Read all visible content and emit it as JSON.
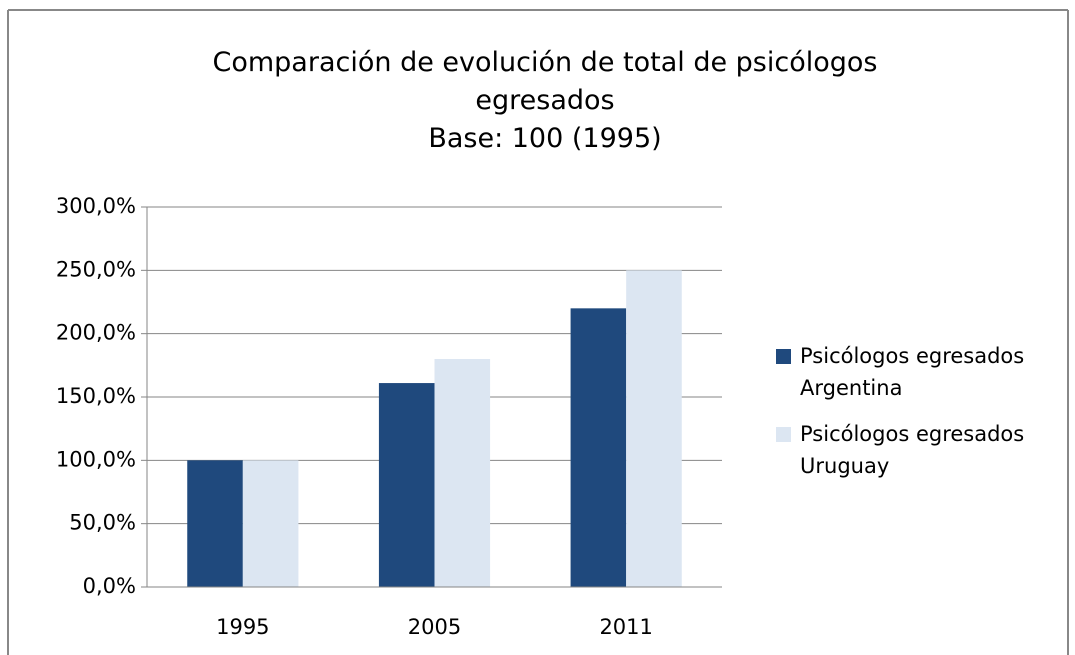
{
  "chart_data": {
    "type": "bar",
    "title": "Comparación de evolución de total de psicólogos egresados",
    "subtitle": "Base: 100 (1995)",
    "categories": [
      "1995",
      "2005",
      "2011"
    ],
    "series": [
      {
        "name": "Psicólogos egresados Argentina",
        "color": "#1f497d",
        "values": [
          100,
          161,
          220
        ]
      },
      {
        "name": "Psicólogos egresados Uruguay",
        "color": "#dce6f2",
        "values": [
          100,
          180,
          250
        ]
      }
    ],
    "ylim": [
      0,
      300
    ],
    "yticks": [
      {
        "value": 0,
        "label": "0,0%"
      },
      {
        "value": 50,
        "label": "50,0%"
      },
      {
        "value": 100,
        "label": "100,0%"
      },
      {
        "value": 150,
        "label": "150,0%"
      },
      {
        "value": 200,
        "label": "200,0%"
      },
      {
        "value": 250,
        "label": "250,0%"
      },
      {
        "value": 300,
        "label": "300,0%"
      }
    ],
    "grid": true,
    "legend": "right"
  }
}
